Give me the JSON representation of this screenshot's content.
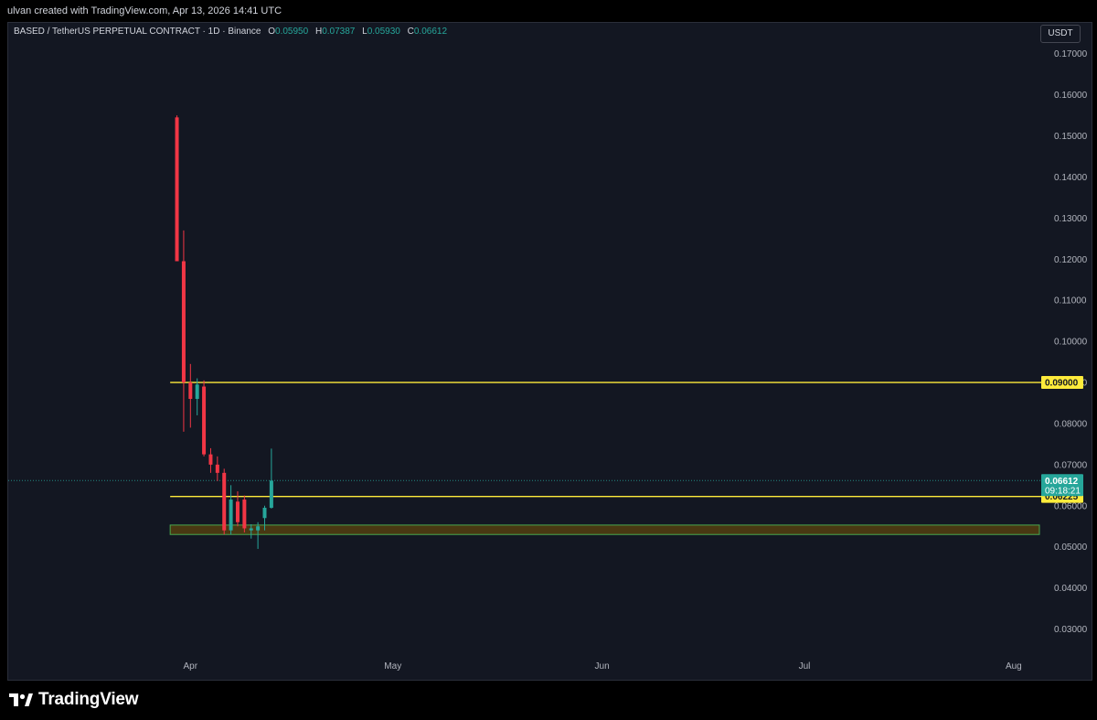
{
  "header": {
    "credit": "ulvan created with TradingView.com, Apr 13, 2026 14:41 UTC"
  },
  "legend": {
    "symbol": "BASED / TetherUS PERPETUAL CONTRACT · 1D · Binance",
    "o_label": "O",
    "o": "0.05950",
    "h_label": "H",
    "h": "0.07387",
    "l_label": "L",
    "l": "0.05930",
    "c_label": "C",
    "c": "0.06612"
  },
  "currency_button": "USDT",
  "footer": {
    "brand": "TradingView"
  },
  "colors": {
    "up": "#26a69a",
    "down": "#f23645",
    "level": "#ffeb3b",
    "zone": "#4caf50",
    "background": "#131722"
  },
  "chart_data": {
    "type": "candlestick",
    "ylim": [
      0.025,
      0.1775
    ],
    "y_ticks": [
      "0.17000",
      "0.16000",
      "0.15000",
      "0.14000",
      "0.13000",
      "0.12000",
      "0.11000",
      "0.10000",
      "0.09000",
      "0.08000",
      "0.07000",
      "0.06000",
      "0.05000",
      "0.04000",
      "0.03000"
    ],
    "x_ticks": [
      {
        "label": "Apr",
        "day": 2
      },
      {
        "label": "May",
        "day": 32
      },
      {
        "label": "Jun",
        "day": 63
      },
      {
        "label": "Jul",
        "day": 93
      },
      {
        "label": "Aug",
        "day": 124
      }
    ],
    "x_range_days": [
      -25,
      127
    ],
    "candles": [
      {
        "day": 0,
        "o": 0.1545,
        "h": 0.155,
        "l": 0.1195,
        "c": 0.1195
      },
      {
        "day": 1,
        "o": 0.1195,
        "h": 0.127,
        "l": 0.078,
        "c": 0.09
      },
      {
        "day": 2,
        "o": 0.09,
        "h": 0.0945,
        "l": 0.079,
        "c": 0.086
      },
      {
        "day": 3,
        "o": 0.086,
        "h": 0.091,
        "l": 0.082,
        "c": 0.0895
      },
      {
        "day": 4,
        "o": 0.089,
        "h": 0.0905,
        "l": 0.072,
        "c": 0.0725
      },
      {
        "day": 5,
        "o": 0.0725,
        "h": 0.074,
        "l": 0.068,
        "c": 0.07
      },
      {
        "day": 6,
        "o": 0.07,
        "h": 0.072,
        "l": 0.066,
        "c": 0.068
      },
      {
        "day": 7,
        "o": 0.068,
        "h": 0.069,
        "l": 0.053,
        "c": 0.054
      },
      {
        "day": 8,
        "o": 0.054,
        "h": 0.065,
        "l": 0.053,
        "c": 0.0615
      },
      {
        "day": 9,
        "o": 0.061,
        "h": 0.0635,
        "l": 0.055,
        "c": 0.056
      },
      {
        "day": 10,
        "o": 0.0615,
        "h": 0.0625,
        "l": 0.0535,
        "c": 0.0545
      },
      {
        "day": 11,
        "o": 0.054,
        "h": 0.0555,
        "l": 0.052,
        "c": 0.0545
      },
      {
        "day": 12,
        "o": 0.054,
        "h": 0.056,
        "l": 0.0495,
        "c": 0.055
      },
      {
        "day": 13,
        "o": 0.057,
        "h": 0.06,
        "l": 0.054,
        "c": 0.0595
      },
      {
        "day": 14,
        "o": 0.0595,
        "h": 0.0739,
        "l": 0.0593,
        "c": 0.0661
      }
    ],
    "levels": [
      {
        "name": "resistance",
        "value": 0.09,
        "label": "0.09000",
        "start_day": -1
      },
      {
        "name": "support",
        "value": 0.06225,
        "label": "0.06225",
        "start_day": -1
      }
    ],
    "zone": {
      "low": 0.053,
      "high": 0.0553,
      "start_day": -1
    },
    "last_price": {
      "value": 0.06612,
      "label": "0.06612",
      "countdown": "09:18:21"
    }
  }
}
